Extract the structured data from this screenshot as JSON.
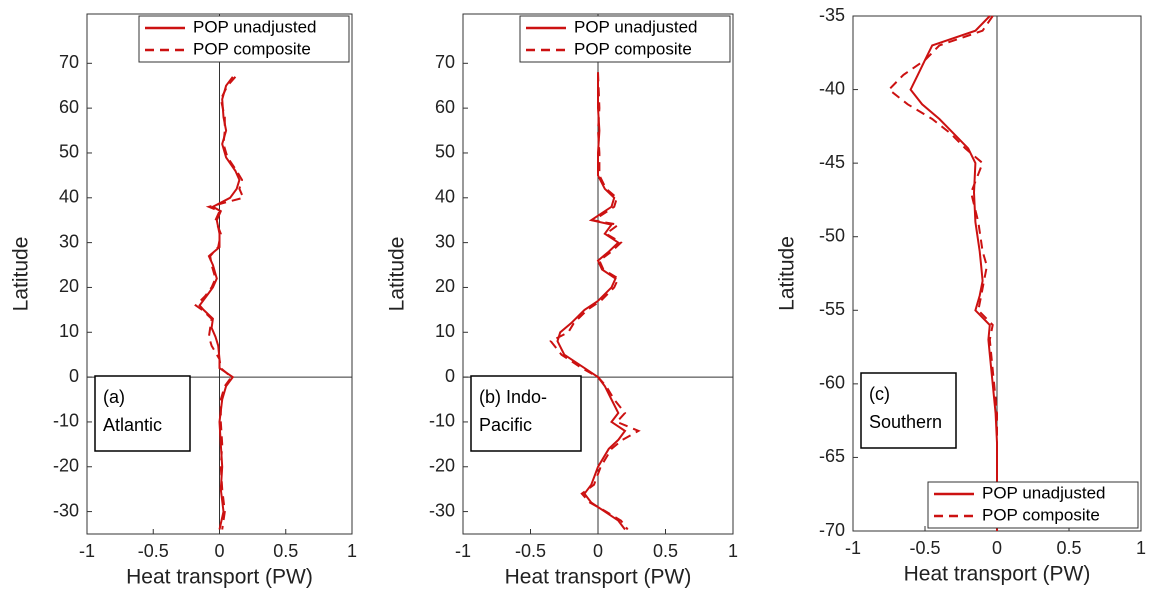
{
  "chart_data": [
    {
      "type": "line",
      "xlabel": "Heat transport (PW)",
      "ylabel": "Latitude",
      "annotation": [
        "(a)",
        "Atlantic"
      ],
      "legend": "upper right",
      "xlim": [
        -1,
        1
      ],
      "xticks": [
        -1,
        -0.5,
        0,
        0.5,
        1
      ],
      "ylim": [
        -35,
        81
      ],
      "yticks": [
        -30,
        -20,
        -10,
        0,
        10,
        20,
        30,
        40,
        50,
        60,
        70
      ],
      "y": [
        67,
        65,
        62,
        58,
        55,
        52,
        49,
        46,
        44,
        42,
        40,
        38,
        37,
        35,
        32,
        29,
        27,
        25,
        22,
        20,
        18,
        16,
        15,
        13,
        11,
        9,
        7,
        4,
        2,
        0,
        -2,
        -5,
        -10,
        -15,
        -20,
        -25,
        -30,
        -34
      ],
      "series": [
        {
          "name": "POP unadjusted",
          "color": "#cc1111",
          "style": "solid",
          "values": [
            0.1,
            0.05,
            0.02,
            0.03,
            0.05,
            0.02,
            0.05,
            0.12,
            0.15,
            0.13,
            0.08,
            -0.05,
            0.01,
            -0.02,
            0.0,
            0.0,
            -0.08,
            -0.05,
            -0.02,
            -0.05,
            -0.1,
            -0.15,
            -0.12,
            -0.05,
            -0.06,
            -0.03,
            -0.01,
            0.0,
            0.0,
            0.1,
            0.05,
            0.02,
            0.0,
            0.01,
            0.02,
            0.01,
            0.03,
            0.0
          ]
        },
        {
          "name": "POP composite",
          "color": "#cc1111",
          "style": "dashed",
          "values": [
            0.12,
            0.06,
            0.01,
            0.04,
            0.04,
            0.03,
            0.06,
            0.13,
            0.17,
            0.15,
            0.18,
            -0.08,
            0.0,
            -0.03,
            0.01,
            -0.01,
            -0.07,
            -0.06,
            -0.03,
            -0.06,
            -0.11,
            -0.18,
            -0.13,
            -0.06,
            -0.07,
            -0.08,
            -0.06,
            0.0,
            0.01,
            0.09,
            0.04,
            0.01,
            0.01,
            0.02,
            0.01,
            0.02,
            0.04,
            0.02
          ]
        }
      ]
    },
    {
      "type": "line",
      "xlabel": "Heat transport (PW)",
      "ylabel": "Latitude",
      "annotation": [
        "(b) Indo-",
        "Pacific"
      ],
      "legend": "upper right",
      "xlim": [
        -1,
        1
      ],
      "xticks": [
        -1,
        -0.5,
        0,
        0.5,
        1
      ],
      "ylim": [
        -35,
        81
      ],
      "yticks": [
        -30,
        -20,
        -10,
        0,
        10,
        20,
        30,
        40,
        50,
        60,
        70
      ],
      "y": [
        68,
        60,
        55,
        50,
        45,
        42,
        40,
        38,
        36,
        35,
        34,
        32,
        30,
        28,
        26,
        24,
        22,
        20,
        17,
        15,
        12,
        10,
        8,
        5,
        2,
        0,
        -2,
        -5,
        -8,
        -10,
        -12,
        -14,
        -16,
        -20,
        -24,
        -26,
        -28,
        -30,
        -32,
        -34
      ],
      "series": [
        {
          "name": "POP unadjusted",
          "color": "#cc1111",
          "style": "solid",
          "values": [
            0.0,
            0.0,
            0.01,
            0.0,
            0.0,
            0.05,
            0.12,
            0.1,
            0.0,
            -0.05,
            0.1,
            0.05,
            0.15,
            0.08,
            0.0,
            0.03,
            0.13,
            0.1,
            0.0,
            -0.1,
            -0.2,
            -0.28,
            -0.3,
            -0.25,
            -0.1,
            0.0,
            0.05,
            0.1,
            0.15,
            0.1,
            0.2,
            0.15,
            0.08,
            0.0,
            -0.05,
            -0.1,
            -0.05,
            0.05,
            0.15,
            0.2
          ]
        },
        {
          "name": "POP composite",
          "color": "#cc1111",
          "style": "dashed",
          "values": [
            0.0,
            0.01,
            0.0,
            0.01,
            0.01,
            0.06,
            0.14,
            0.12,
            0.02,
            -0.04,
            0.15,
            0.06,
            0.17,
            0.1,
            0.01,
            0.04,
            0.15,
            0.12,
            0.02,
            -0.08,
            -0.18,
            -0.22,
            -0.35,
            -0.27,
            -0.12,
            0.0,
            0.06,
            0.12,
            0.2,
            0.14,
            0.3,
            0.18,
            0.1,
            0.02,
            -0.03,
            -0.12,
            -0.06,
            0.06,
            0.17,
            0.22
          ]
        }
      ]
    },
    {
      "type": "line",
      "xlabel": "Heat transport (PW)",
      "ylabel": "Latitude",
      "annotation": [
        "(c)",
        "Southern"
      ],
      "legend": "lower right",
      "xlim": [
        -1,
        1
      ],
      "xticks": [
        -1,
        -0.5,
        0,
        0.5,
        1
      ],
      "ylim": [
        -70,
        -35
      ],
      "yticks": [
        -70,
        -65,
        -60,
        -55,
        -50,
        -45,
        -40,
        -35
      ],
      "y": [
        -35,
        -36,
        -37,
        -38,
        -39,
        -40,
        -41,
        -42,
        -43,
        -44,
        -45,
        -47,
        -49,
        -51,
        -52,
        -53,
        -54,
        -55,
        -56,
        -57,
        -58,
        -60,
        -62,
        -64,
        -66,
        -68,
        -70
      ],
      "series": [
        {
          "name": "POP unadjusted",
          "color": "#cc1111",
          "style": "solid",
          "values": [
            -0.05,
            -0.15,
            -0.45,
            -0.5,
            -0.55,
            -0.6,
            -0.52,
            -0.4,
            -0.3,
            -0.2,
            -0.15,
            -0.16,
            -0.15,
            -0.12,
            -0.11,
            -0.1,
            -0.12,
            -0.15,
            -0.05,
            -0.06,
            -0.05,
            -0.03,
            -0.01,
            0.0,
            0.0,
            0.0,
            0.0
          ]
        },
        {
          "name": "POP composite",
          "color": "#cc1111",
          "style": "dashed",
          "values": [
            -0.03,
            -0.1,
            -0.4,
            -0.5,
            -0.65,
            -0.75,
            -0.62,
            -0.45,
            -0.32,
            -0.22,
            -0.1,
            -0.18,
            -0.13,
            -0.1,
            -0.07,
            -0.09,
            -0.11,
            -0.13,
            -0.03,
            -0.05,
            -0.04,
            -0.02,
            0.0,
            0.0,
            0.0,
            0.0,
            0.0
          ]
        }
      ]
    }
  ]
}
